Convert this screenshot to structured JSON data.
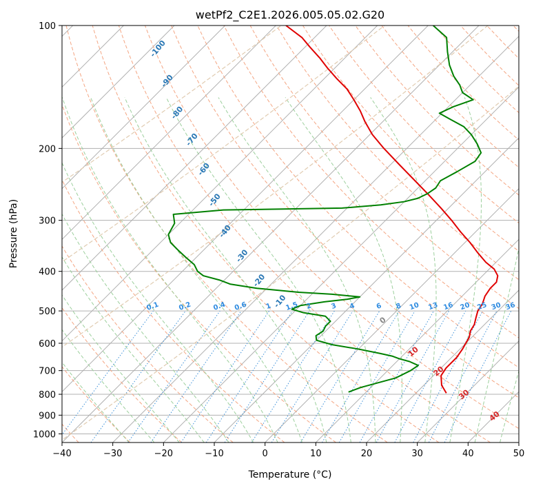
{
  "chart_data": {
    "type": "line",
    "subtype": "skew-t log-p",
    "title": "wetPf2_C2E1.2026.005.05.02.G20",
    "xlabel": "Temperature (°C)",
    "ylabel": "Pressure (hPa)",
    "xlim": [
      -40,
      50
    ],
    "ylim": [
      1050,
      100
    ],
    "x_ticks": [
      -40,
      -30,
      -20,
      -10,
      0,
      10,
      20,
      30,
      40,
      50
    ],
    "x_tick_labels": [
      "−40",
      "−30",
      "−20",
      "−10",
      "0",
      "10",
      "20",
      "30",
      "40",
      "50"
    ],
    "y_ticks": [
      100,
      200,
      300,
      400,
      500,
      600,
      700,
      800,
      900,
      1000
    ],
    "y_tick_labels": [
      "100",
      "200",
      "300",
      "400",
      "500",
      "600",
      "700",
      "800",
      "900",
      "1000"
    ],
    "dry_adiabat_labels": [
      {
        "text": "-100",
        "p": 115
      },
      {
        "text": "-90",
        "p": 138
      },
      {
        "text": "-80",
        "p": 165
      },
      {
        "text": "-70",
        "p": 192
      },
      {
        "text": "-60",
        "p": 227
      },
      {
        "text": "-50",
        "p": 270
      },
      {
        "text": "-40",
        "p": 322
      },
      {
        "text": "-30",
        "p": 370
      },
      {
        "text": "-20",
        "p": 425
      },
      {
        "text": "-10",
        "p": 478
      }
    ],
    "moist_adiabat_labels": [
      {
        "text": "0",
        "T": 23.5,
        "p": 533
      },
      {
        "text": "10",
        "T": 29.5,
        "p": 636
      },
      {
        "text": "20",
        "T": 34.5,
        "p": 710
      },
      {
        "text": "30",
        "T": 39.5,
        "p": 810
      },
      {
        "text": "40",
        "T": 45.5,
        "p": 915
      }
    ],
    "mixing_ratio_labels": [
      "0.1",
      "0.2",
      "0.4",
      "0.6",
      "1",
      "1.5",
      "2",
      "3",
      "4",
      "6",
      "8",
      "10",
      "13",
      "16",
      "20",
      "25",
      "30",
      "36"
    ],
    "series": [
      {
        "name": "Temperature",
        "color": "#e00000",
        "p": [
          795,
          760,
          720,
          690,
          650,
          620,
          600,
          580,
          560,
          540,
          520,
          500,
          480,
          460,
          440,
          425,
          410,
          395,
          380,
          360,
          340,
          320,
          300,
          280,
          260,
          240,
          220,
          200,
          185,
          172,
          162,
          152,
          143,
          135,
          127,
          120,
          113,
          107,
          100
        ],
        "T": [
          26,
          23.5,
          21.5,
          21,
          21,
          20.5,
          20,
          19.5,
          18.5,
          18,
          17,
          16,
          15.5,
          14.5,
          14,
          14,
          13,
          11,
          8,
          4.5,
          1,
          -3,
          -7,
          -11.5,
          -16.5,
          -22,
          -28,
          -34.5,
          -39.5,
          -43.5,
          -46.5,
          -50,
          -53.5,
          -57.5,
          -61.5,
          -65,
          -69,
          -72.5,
          -78
        ]
      },
      {
        "name": "Dewpoint",
        "color": "#008000",
        "p": [
          790,
          770,
          730,
          700,
          680,
          665,
          655,
          645,
          635,
          620,
          605,
          590,
          575,
          560,
          545,
          530,
          515,
          505,
          495,
          485,
          475,
          468,
          462,
          455,
          450,
          440,
          430,
          420,
          410,
          400,
          385,
          370,
          355,
          340,
          325,
          305,
          290,
          283,
          280,
          275,
          270,
          265,
          258,
          250,
          240,
          228,
          215,
          205,
          195,
          185,
          177,
          170,
          164,
          158,
          152,
          146,
          140,
          133,
          125,
          116,
          107,
          100
        ],
        "T": [
          6.5,
          8,
          13,
          14.5,
          15,
          12.5,
          10,
          8,
          5,
          0,
          -6,
          -10,
          -11,
          -10.5,
          -11,
          -11,
          -13,
          -18,
          -21,
          -20,
          -16,
          -12,
          -10,
          -16,
          -23,
          -32,
          -38,
          -41,
          -45,
          -47,
          -49,
          -52,
          -55,
          -58,
          -60,
          -61,
          -63,
          -54,
          -31,
          -24,
          -20,
          -18,
          -17,
          -16.5,
          -17,
          -15.5,
          -14,
          -14.5,
          -17,
          -20,
          -23,
          -27,
          -30.5,
          -29,
          -26.5,
          -30,
          -32,
          -35,
          -38,
          -41,
          -44,
          -49
        ]
      }
    ],
    "grid": true
  }
}
